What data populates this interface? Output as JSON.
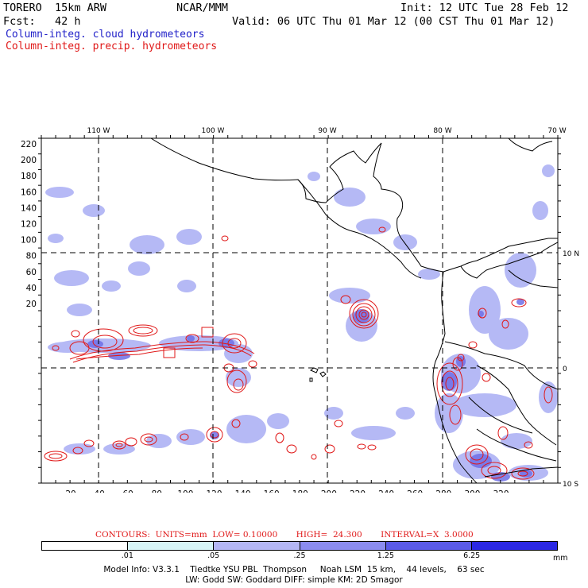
{
  "header": {
    "model": "TORERO  15km ARW",
    "center": "NCAR/MMM",
    "init": "Init: 12 UTC Tue 28 Feb 12",
    "forecast": "Fcst:   42 h",
    "valid": "Valid: 06 UTC Thu 01 Mar 12 (00 CST Thu 01 Mar 12)",
    "field_cloud": "Column-integ. cloud hydrometeors",
    "field_precip": "Column-integ. precip. hydrometeors"
  },
  "colors": {
    "cloud_field": "#a9adf4",
    "cloud_dense": "#6f6fe6",
    "precip_contour": "#e01818",
    "coast": "#000000"
  },
  "axes": {
    "top_lon_labels": [
      "110 W",
      "100 W",
      "90 W",
      "80 W",
      "70 W"
    ],
    "right_lat_labels": [
      "10 N",
      "0",
      "10 S"
    ],
    "left_grid_labels": [
      "220",
      "200",
      "180",
      "160",
      "140",
      "120",
      "100",
      "80",
      "60",
      "40",
      "20"
    ],
    "bottom_grid_labels": [
      "20",
      "40",
      "60",
      "80",
      "100",
      "120",
      "140",
      "160",
      "180",
      "200",
      "220",
      "240",
      "260",
      "280",
      "300",
      "320"
    ]
  },
  "contours_caption": "CONTOURS:  UNITS=mm  LOW= 0.10000       HIGH=  24.300       INTERVAL=X  3.0000",
  "colorbar": {
    "labels": [
      ".01",
      ".05",
      ".25",
      "1.25",
      "6.25"
    ],
    "unit": "mm",
    "colors": [
      "#ffffff",
      "#d7f5f7",
      "#b4b6f4",
      "#8b8cf0",
      "#5a5ae8",
      "#2b28e4"
    ]
  },
  "model_info": {
    "line1": "Model Info: V3.3.1    Tiedtke YSU PBL  Thompson     Noah LSM  15 km,    44 levels,    63 sec",
    "line2": "LW: Godd SW: Goddard DIFF: simple KM: 2D Smagor"
  }
}
